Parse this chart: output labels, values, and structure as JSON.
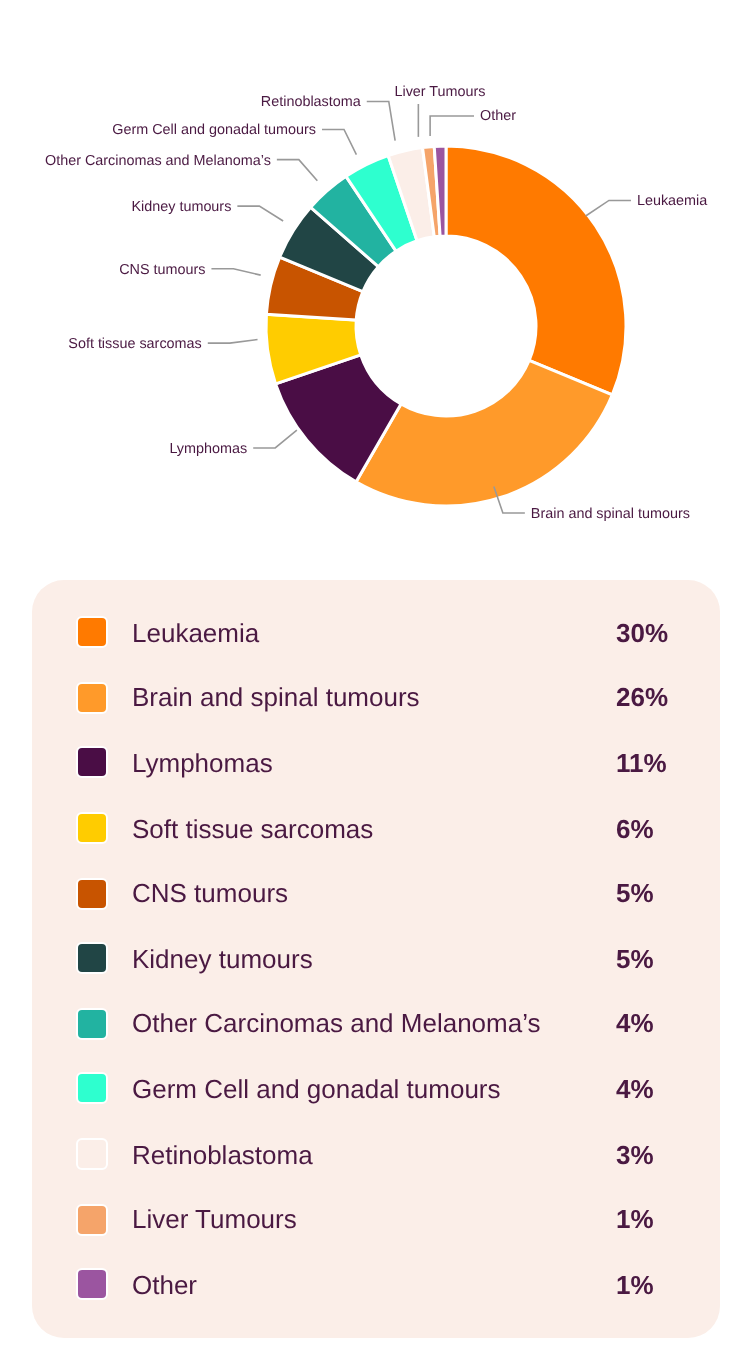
{
  "chart_data": {
    "type": "donut",
    "categories": [
      "Leukaemia",
      "Brain and spinal tumours",
      "Lymphomas",
      "Soft tissue sarcomas",
      "CNS tumours",
      "Kidney tumours",
      "Other Carcinomas and Melanoma’s",
      "Germ Cell and gonadal tumours",
      "Retinoblastoma",
      "Liver Tumours",
      "Other"
    ],
    "values": [
      30,
      26,
      11,
      6,
      5,
      5,
      4,
      4,
      3,
      1,
      1
    ],
    "colors": [
      "#ff7a00",
      "#ff9a2a",
      "#4a0d45",
      "#ffcc00",
      "#c85400",
      "#214545",
      "#22b3a1",
      "#2effcf",
      "#fbeee8",
      "#f5a46a",
      "#9b55a0"
    ],
    "value_labels": [
      "30%",
      "26%",
      "11%",
      "6%",
      "5%",
      "5%",
      "4%",
      "4%",
      "3%",
      "1%",
      "1%"
    ],
    "legend": "bottom"
  }
}
